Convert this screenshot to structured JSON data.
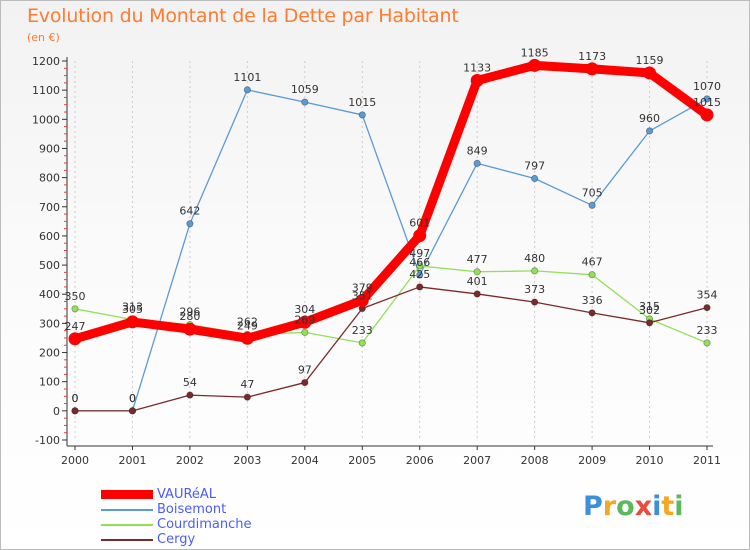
{
  "title": "Evolution du Montant de la Dette par Habitant",
  "unit": "(en €)",
  "chart_data": {
    "type": "line",
    "title": "Evolution du Montant de la Dette par Habitant",
    "ylabel": "(en €)",
    "xlabel": "",
    "x": [
      "2000",
      "2001",
      "2002",
      "2003",
      "2004",
      "2005",
      "2006",
      "2007",
      "2008",
      "2009",
      "2010",
      "2011"
    ],
    "ylim": [
      -100,
      1200
    ],
    "yticks": [
      -100,
      0,
      100,
      200,
      300,
      400,
      500,
      600,
      700,
      800,
      900,
      1000,
      1100,
      1200
    ],
    "grid": "vertical",
    "legend_position": "bottom-left",
    "series": [
      {
        "name": "VAURéAL",
        "color": "#ff0000",
        "values": [
          247,
          305,
          280,
          249,
          304,
          379,
          601,
          1133,
          1185,
          1173,
          1159,
          1015
        ]
      },
      {
        "name": "Boisemont",
        "color": "#5b9bd5",
        "values": [
          0,
          0,
          642,
          1101,
          1059,
          1015,
          466,
          849,
          797,
          705,
          960,
          1070
        ]
      },
      {
        "name": "Courdimanche",
        "color": "#92e05a",
        "values": [
          350,
          313,
          296,
          262,
          269,
          233,
          497,
          477,
          480,
          467,
          315,
          233
        ]
      },
      {
        "name": "Cergy",
        "color": "#7a2a2a",
        "values": [
          0,
          0,
          54,
          47,
          97,
          351,
          425,
          401,
          373,
          336,
          302,
          354
        ]
      }
    ]
  },
  "logo": {
    "letters": [
      {
        "char": "P",
        "color": "#3c8fd9"
      },
      {
        "char": "r",
        "color": "#f5a623"
      },
      {
        "char": "o",
        "color": "#5cb85c"
      },
      {
        "char": "x",
        "color": "#e74c3c"
      },
      {
        "char": "i",
        "color": "#3c8fd9"
      },
      {
        "char": "t",
        "color": "#f5a623"
      },
      {
        "char": "i",
        "color": "#5cb85c"
      }
    ]
  }
}
